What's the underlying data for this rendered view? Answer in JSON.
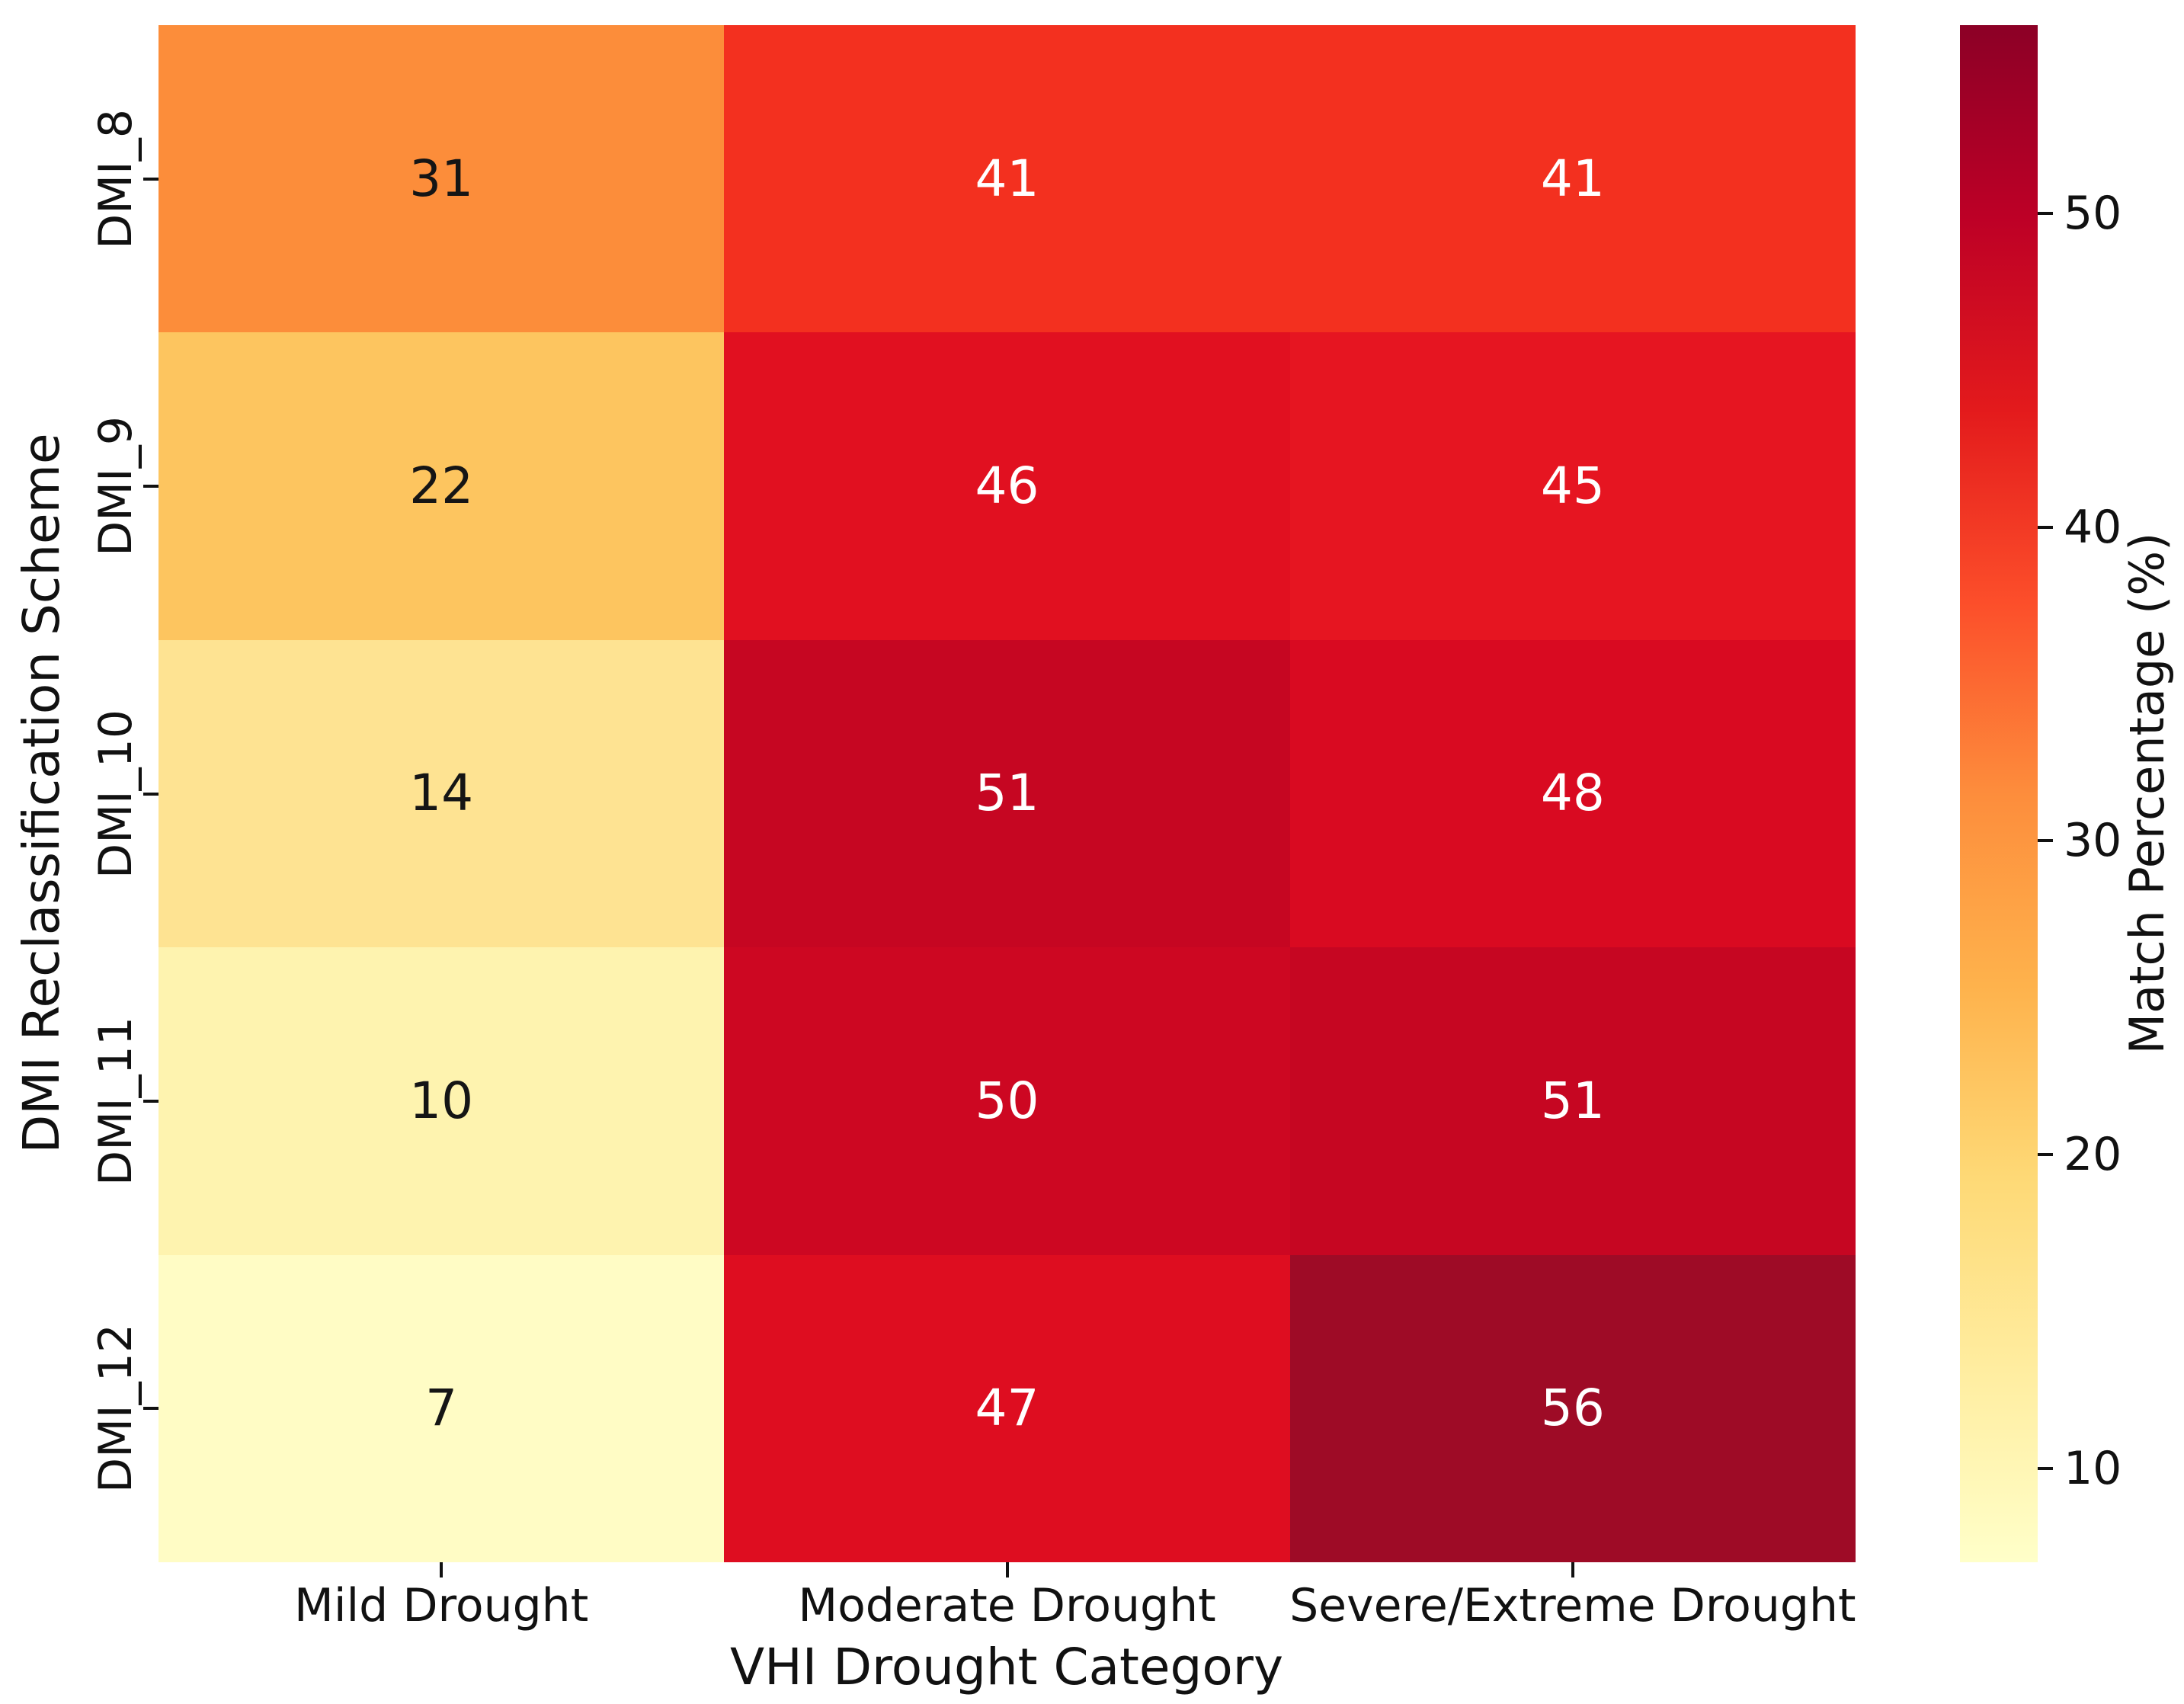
{
  "chart_data": {
    "type": "heatmap",
    "title": "",
    "xlabel": "VHI Drought Category",
    "ylabel": "DMI Reclassification Scheme",
    "x_categories": [
      "Mild Drought",
      "Moderate Drought",
      "Severe/Extreme Drought"
    ],
    "y_categories": [
      "DMI_8",
      "DMI_9",
      "DMI_10",
      "DMI_11",
      "DMI_12"
    ],
    "values": [
      [
        31,
        41,
        41
      ],
      [
        22,
        46,
        45
      ],
      [
        14,
        51,
        48
      ],
      [
        10,
        50,
        51
      ],
      [
        7,
        47,
        56
      ]
    ],
    "cell_colors": [
      [
        "#FC8D3A",
        "#F3301F",
        "#F3301F"
      ],
      [
        "#FDC55F",
        "#E11020",
        "#E61521"
      ],
      [
        "#FEE392",
        "#C60622",
        "#D90A21"
      ],
      [
        "#FEF3AF",
        "#CD0722",
        "#C60622"
      ],
      [
        "#FFFCC5",
        "#DE0D20",
        "#9E0B26"
      ]
    ],
    "annotation_colors": {
      "dark": "#151515",
      "light": "#ffffff"
    },
    "grid": false,
    "colorbar": {
      "label": "Match Percentage (%)",
      "vmin": 7,
      "vmax": 56,
      "ticks": [
        10,
        20,
        30,
        40,
        50
      ],
      "colormap": "YlOrRd",
      "gradient_stops": [
        "#FFFFC9",
        "#FFEDA0",
        "#FED976",
        "#FEB24C",
        "#FD8D3C",
        "#FC4E2A",
        "#E31A1C",
        "#BD0026",
        "#8C0026"
      ]
    },
    "axis_color": "#111111",
    "background": "#ffffff"
  }
}
